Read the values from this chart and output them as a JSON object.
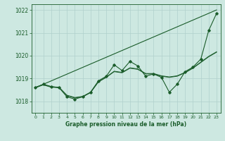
{
  "bg_color": "#cde8e1",
  "grid_color": "#b0d0cc",
  "line_color": "#1a5c2a",
  "title": "Graphe pression niveau de la mer (hPa)",
  "ylim": [
    1017.5,
    1022.25
  ],
  "xlim": [
    -0.5,
    23.5
  ],
  "yticks": [
    1018,
    1019,
    1020,
    1021,
    1022
  ],
  "xticks": [
    0,
    1,
    2,
    3,
    4,
    5,
    6,
    7,
    8,
    9,
    10,
    11,
    12,
    13,
    14,
    15,
    16,
    17,
    18,
    19,
    20,
    21,
    22,
    23
  ],
  "trend_x": [
    0,
    23
  ],
  "trend_y": [
    1018.6,
    1022.0
  ],
  "series_main": [
    1018.6,
    1018.75,
    1018.65,
    1018.6,
    1018.2,
    1018.1,
    1018.2,
    1018.4,
    1018.9,
    1019.1,
    1019.6,
    1019.35,
    1019.75,
    1019.55,
    1019.1,
    1019.2,
    1019.05,
    1018.4,
    1018.75,
    1019.3,
    1019.5,
    1019.85,
    1021.1,
    1021.85
  ],
  "series_smooth": [
    1018.6,
    1018.72,
    1018.62,
    1018.6,
    1018.25,
    1018.15,
    1018.2,
    1018.38,
    1018.85,
    1019.05,
    1019.3,
    1019.25,
    1019.45,
    1019.4,
    1019.2,
    1019.2,
    1019.1,
    1019.05,
    1019.1,
    1019.25,
    1019.45,
    1019.7,
    1019.95,
    1020.15
  ],
  "series_smooth2": [
    1018.62,
    1018.74,
    1018.64,
    1018.62,
    1018.27,
    1018.17,
    1018.22,
    1018.4,
    1018.87,
    1019.07,
    1019.32,
    1019.27,
    1019.47,
    1019.42,
    1019.22,
    1019.22,
    1019.12,
    1019.07,
    1019.12,
    1019.27,
    1019.47,
    1019.72,
    1019.97,
    1020.17
  ]
}
